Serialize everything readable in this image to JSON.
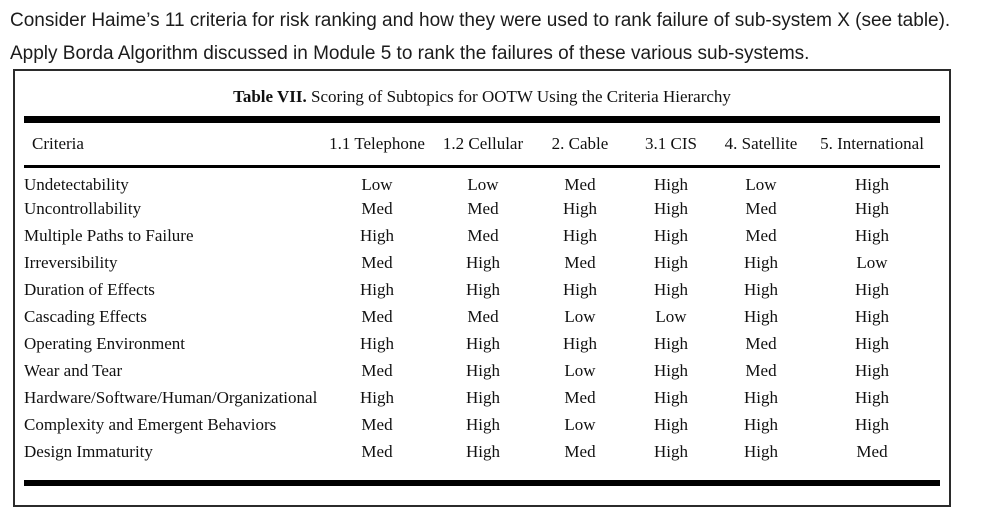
{
  "question": {
    "text": "Consider Haime’s 11 criteria for risk ranking and how they were used to rank failure of sub-system X (see table). Apply Borda Algorithm discussed in Module 5 to rank the failures of these various sub-systems."
  },
  "table": {
    "title_label": "Table VII.",
    "title_text": "Scoring of Subtopics for OOTW Using the Criteria Hierarchy",
    "columns": [
      "Criteria",
      "1.1 Telephone",
      "1.2 Cellular",
      "2. Cable",
      "3.1 CIS",
      "4. Satellite",
      "5. International"
    ],
    "rows": [
      {
        "criteria": "Undetectability",
        "values": [
          "Low",
          "Low",
          "Med",
          "High",
          "Low",
          "High"
        ]
      },
      {
        "criteria": "Uncontrollability",
        "values": [
          "Med",
          "Med",
          "High",
          "High",
          "Med",
          "High"
        ]
      },
      {
        "criteria": "Multiple Paths to Failure",
        "values": [
          "High",
          "Med",
          "High",
          "High",
          "Med",
          "High"
        ]
      },
      {
        "criteria": "Irreversibility",
        "values": [
          "Med",
          "High",
          "Med",
          "High",
          "High",
          "Low"
        ]
      },
      {
        "criteria": "Duration of Effects",
        "values": [
          "High",
          "High",
          "High",
          "High",
          "High",
          "High"
        ]
      },
      {
        "criteria": "Cascading Effects",
        "values": [
          "Med",
          "Med",
          "Low",
          "Low",
          "High",
          "High"
        ]
      },
      {
        "criteria": "Operating Environment",
        "values": [
          "High",
          "High",
          "High",
          "High",
          "Med",
          "High"
        ]
      },
      {
        "criteria": "Wear and Tear",
        "values": [
          "Med",
          "High",
          "Low",
          "High",
          "Med",
          "High"
        ]
      },
      {
        "criteria": "Hardware/Software/Human/Organizational",
        "values": [
          "High",
          "High",
          "Med",
          "High",
          "High",
          "High"
        ]
      },
      {
        "criteria": "Complexity and Emergent Behaviors",
        "values": [
          "Med",
          "High",
          "Low",
          "High",
          "High",
          "High"
        ]
      },
      {
        "criteria": "Design Immaturity",
        "values": [
          "Med",
          "High",
          "Med",
          "High",
          "High",
          "Med"
        ]
      }
    ],
    "colors": {
      "text": "#111111",
      "rule": "#000000",
      "border": "#2b2b2b",
      "background": "#ffffff"
    }
  }
}
